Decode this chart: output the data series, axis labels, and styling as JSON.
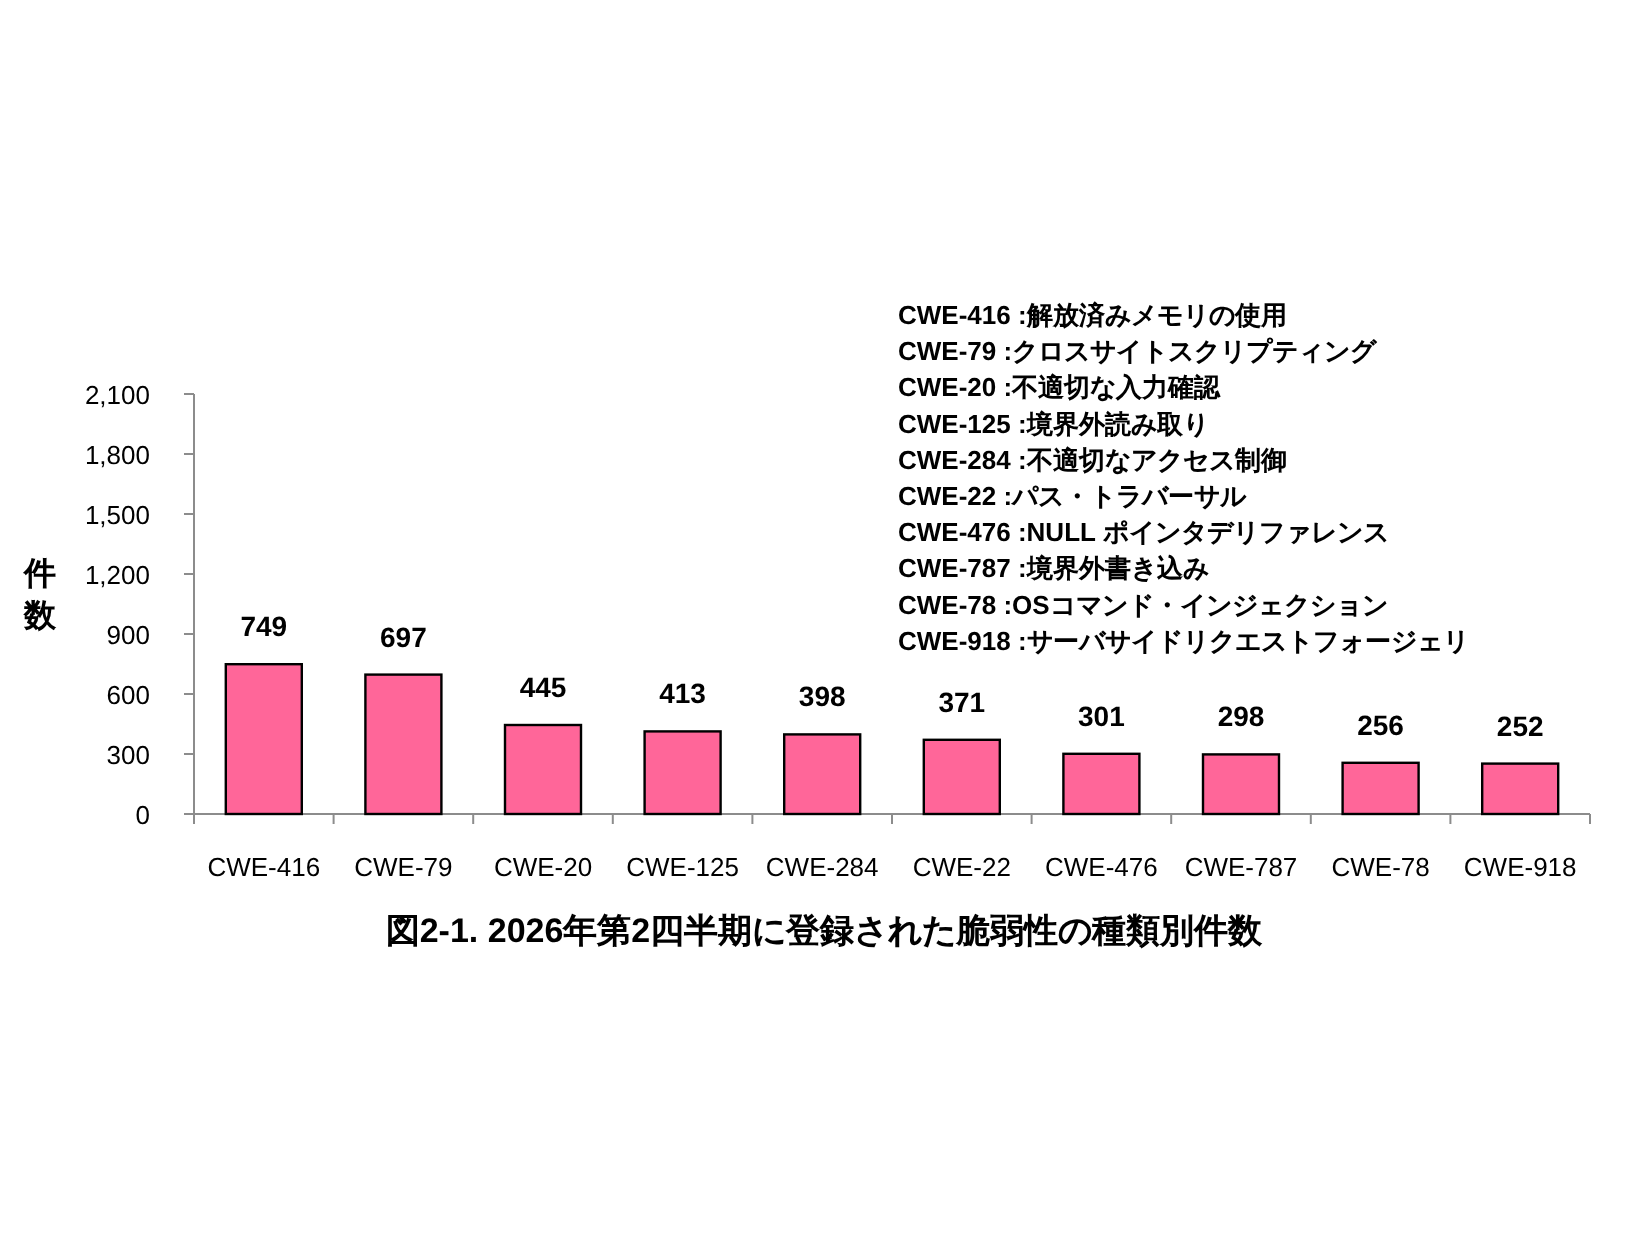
{
  "chart_data": {
    "type": "bar",
    "title": "図2-1. 2026年第2四半期に登録された脆弱性の種類別件数",
    "ylabel": "件数",
    "categories": [
      "CWE-416",
      "CWE-79",
      "CWE-20",
      "CWE-125",
      "CWE-284",
      "CWE-22",
      "CWE-476",
      "CWE-787",
      "CWE-78",
      "CWE-918"
    ],
    "values": [
      749,
      697,
      445,
      413,
      398,
      371,
      301,
      298,
      256,
      252
    ],
    "color": "#ff6699",
    "data_labels": true,
    "ylim": [
      0,
      2100
    ],
    "yticks": [
      0,
      300,
      600,
      900,
      {
        "value": 1200,
        "label": "1,200"
      },
      {
        "value": 1500,
        "label": "1,500"
      },
      {
        "value": 1800,
        "label": "1,800"
      },
      {
        "value": 2100,
        "label": "2,100"
      }
    ],
    "annotations": [
      "CWE-416 :解放済みメモリの使用",
      "CWE-79 :クロスサイトスクリプティング",
      "CWE-20 :不適切な入力確認",
      "CWE-125 :境界外読み取り",
      "CWE-284 :不適切なアクセス制御",
      "CWE-22 :パス・トラバーサル",
      "CWE-476 :NULL ポインタデリファレンス",
      "CWE-787 :境界外書き込み",
      "CWE-78 :OSコマンド・インジェクション",
      "CWE-918 :サーバサイドリクエストフォージェリ"
    ]
  }
}
